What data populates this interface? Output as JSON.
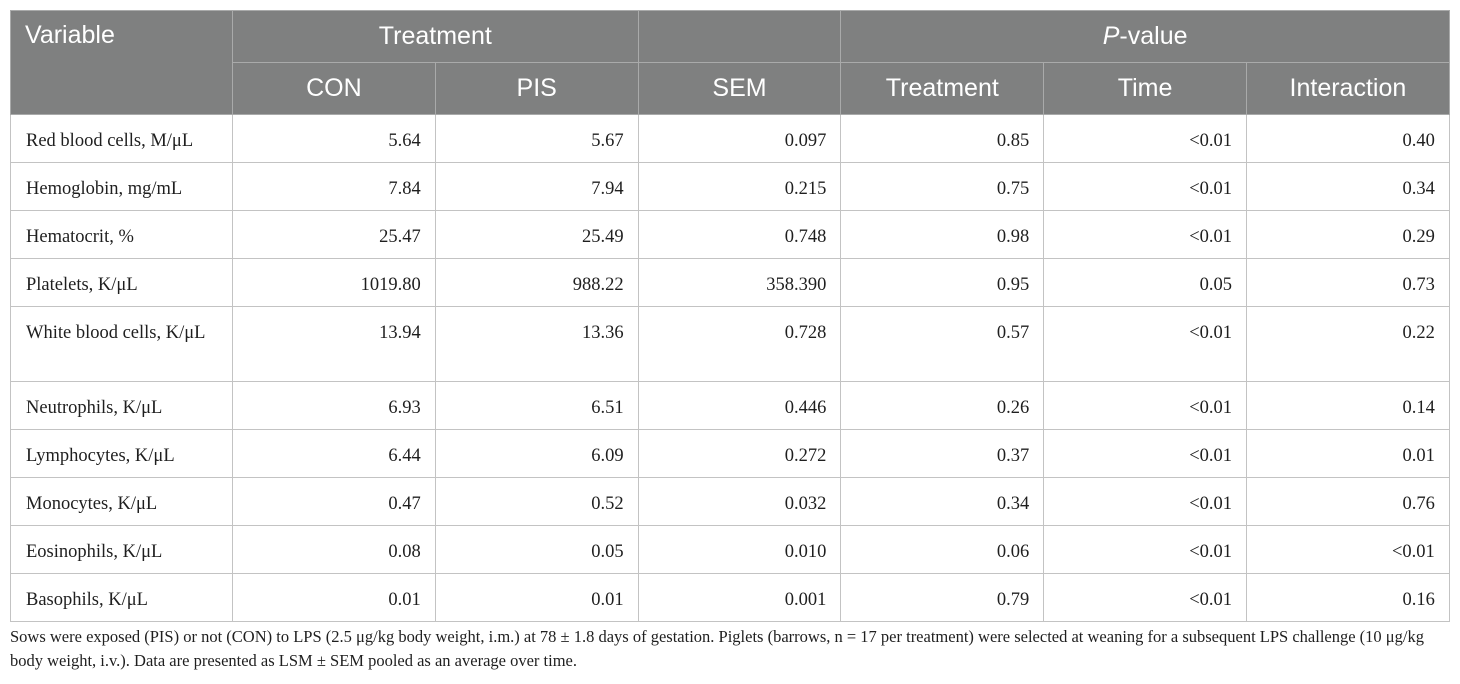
{
  "header": {
    "variable": "Variable",
    "treatment_group": "Treatment",
    "pvalue_italic": "P",
    "pvalue_rest": "-value",
    "con": "CON",
    "pis": "PIS",
    "sem": "SEM",
    "p_treatment": "Treatment",
    "p_time": "Time",
    "p_interaction": "Interaction"
  },
  "rows": [
    {
      "variable": "Red blood cells, M/μL",
      "con": "5.64",
      "pis": "5.67",
      "sem": "0.097",
      "treatment": "0.85",
      "time": "<0.01",
      "interaction": "0.40"
    },
    {
      "variable": "Hemoglobin, mg/mL",
      "con": "7.84",
      "pis": "7.94",
      "sem": "0.215",
      "treatment": "0.75",
      "time": "<0.01",
      "interaction": "0.34"
    },
    {
      "variable": "Hematocrit, %",
      "con": "25.47",
      "pis": "25.49",
      "sem": "0.748",
      "treatment": "0.98",
      "time": "<0.01",
      "interaction": "0.29"
    },
    {
      "variable": "Platelets, K/μL",
      "con": "1019.80",
      "pis": "988.22",
      "sem": "358.390",
      "treatment": "0.95",
      "time": "0.05",
      "interaction": "0.73"
    },
    {
      "variable": "White blood cells, K/μL",
      "con": "13.94",
      "pis": "13.36",
      "sem": "0.728",
      "treatment": "0.57",
      "time": "<0.01",
      "interaction": "0.22"
    },
    {
      "variable": "Neutrophils, K/μL",
      "con": "6.93",
      "pis": "6.51",
      "sem": "0.446",
      "treatment": "0.26",
      "time": "<0.01",
      "interaction": "0.14"
    },
    {
      "variable": "Lymphocytes, K/μL",
      "con": "6.44",
      "pis": "6.09",
      "sem": "0.272",
      "treatment": "0.37",
      "time": "<0.01",
      "interaction": "0.01"
    },
    {
      "variable": "Monocytes, K/μL",
      "con": "0.47",
      "pis": "0.52",
      "sem": "0.032",
      "treatment": "0.34",
      "time": "<0.01",
      "interaction": "0.76"
    },
    {
      "variable": "Eosinophils, K/μL",
      "con": "0.08",
      "pis": "0.05",
      "sem": "0.010",
      "treatment": "0.06",
      "time": "<0.01",
      "interaction": "<0.01"
    },
    {
      "variable": "Basophils, K/μL",
      "con": "0.01",
      "pis": "0.01",
      "sem": "0.001",
      "treatment": "0.79",
      "time": "<0.01",
      "interaction": "0.16"
    }
  ],
  "footnote": "Sows were exposed (PIS) or not (CON) to LPS (2.5 μg/kg body weight, i.m.) at 78 ± 1.8 days of gestation. Piglets (barrows, n = 17 per treatment) were selected at weaning for a subsequent LPS challenge (10 μg/kg body weight, i.v.). Data are presented as LSM ± SEM pooled as an average over time.",
  "colors": {
    "header_bg": "#7f8080",
    "header_text": "#ffffff",
    "grid": "#c3c3c3"
  }
}
